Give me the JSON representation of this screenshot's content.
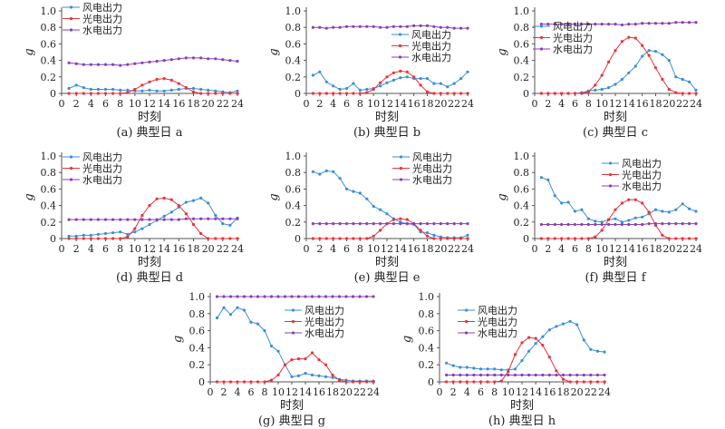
{
  "chart_data": [
    {
      "id": "a",
      "type": "line",
      "caption": "(a) 典型日 a",
      "xlabel": "时刻",
      "ylabel": "g",
      "ylim": [
        0,
        1.0
      ],
      "x": [
        1,
        2,
        3,
        4,
        5,
        6,
        7,
        8,
        9,
        10,
        11,
        12,
        13,
        14,
        15,
        16,
        17,
        18,
        19,
        20,
        21,
        22,
        23,
        24
      ],
      "legend_position": "top-left",
      "series": [
        {
          "name": "风电出力",
          "color": "#3b8ed8",
          "values": [
            0.06,
            0.1,
            0.07,
            0.05,
            0.05,
            0.05,
            0.05,
            0.04,
            0.04,
            0.03,
            0.03,
            0.04,
            0.03,
            0.03,
            0.04,
            0.05,
            0.06,
            0.06,
            0.05,
            0.04,
            0.03,
            0.02,
            0.01,
            0.03
          ]
        },
        {
          "name": "光电出力",
          "color": "#e8333a",
          "values": [
            0,
            0,
            0,
            0,
            0,
            0,
            0,
            0,
            0.01,
            0.05,
            0.1,
            0.14,
            0.17,
            0.18,
            0.16,
            0.12,
            0.07,
            0.02,
            0,
            0,
            0,
            0,
            0,
            0
          ]
        },
        {
          "name": "水电出力",
          "color": "#8a3fb5",
          "values": [
            0.37,
            0.36,
            0.35,
            0.35,
            0.35,
            0.35,
            0.35,
            0.34,
            0.35,
            0.36,
            0.37,
            0.38,
            0.39,
            0.4,
            0.41,
            0.42,
            0.43,
            0.43,
            0.43,
            0.42,
            0.42,
            0.41,
            0.4,
            0.39
          ]
        }
      ]
    },
    {
      "id": "b",
      "type": "line",
      "caption": "(b) 典型日 b",
      "xlabel": "时刻",
      "ylabel": "g",
      "ylim": [
        0,
        1.0
      ],
      "x": [
        1,
        2,
        3,
        4,
        5,
        6,
        7,
        8,
        9,
        10,
        11,
        12,
        13,
        14,
        15,
        16,
        17,
        18,
        19,
        20,
        21,
        22,
        23,
        24
      ],
      "legend_position": "right-middle",
      "series": [
        {
          "name": "风电出力",
          "color": "#3b8ed8",
          "values": [
            0.22,
            0.26,
            0.14,
            0.09,
            0.05,
            0.06,
            0.12,
            0.04,
            0.05,
            0.06,
            0.09,
            0.13,
            0.16,
            0.19,
            0.2,
            0.18,
            0.18,
            0.18,
            0.12,
            0.12,
            0.08,
            0.12,
            0.18,
            0.26
          ]
        },
        {
          "name": "光电出力",
          "color": "#e8333a",
          "values": [
            0,
            0,
            0,
            0,
            0,
            0,
            0,
            0,
            0.01,
            0.05,
            0.13,
            0.2,
            0.25,
            0.27,
            0.26,
            0.2,
            0.1,
            0.02,
            0,
            0,
            0,
            0,
            0,
            0
          ]
        },
        {
          "name": "水电出力",
          "color": "#8a3fb5",
          "values": [
            0.8,
            0.8,
            0.79,
            0.8,
            0.8,
            0.81,
            0.81,
            0.81,
            0.81,
            0.81,
            0.8,
            0.8,
            0.81,
            0.81,
            0.81,
            0.82,
            0.82,
            0.82,
            0.81,
            0.8,
            0.8,
            0.79,
            0.79,
            0.79
          ]
        }
      ]
    },
    {
      "id": "c",
      "type": "line",
      "caption": "(c) 典型日 c",
      "xlabel": "时刻",
      "ylabel": "g",
      "ylim": [
        0,
        1.0
      ],
      "x": [
        1,
        2,
        3,
        4,
        5,
        6,
        7,
        8,
        9,
        10,
        11,
        12,
        13,
        14,
        15,
        16,
        17,
        18,
        19,
        20,
        21,
        22,
        23,
        24
      ],
      "legend_position": "top-left",
      "series": [
        {
          "name": "风电出力",
          "color": "#3b8ed8",
          "values": [
            0,
            0,
            0,
            0,
            0,
            0,
            0.01,
            0.03,
            0.04,
            0.05,
            0.07,
            0.11,
            0.17,
            0.25,
            0.33,
            0.45,
            0.52,
            0.51,
            0.47,
            0.4,
            0.2,
            0.17,
            0.14,
            0.04
          ]
        },
        {
          "name": "光电出力",
          "color": "#e8333a",
          "values": [
            0,
            0,
            0,
            0,
            0,
            0,
            0,
            0.02,
            0.1,
            0.22,
            0.38,
            0.52,
            0.63,
            0.68,
            0.67,
            0.58,
            0.46,
            0.31,
            0.17,
            0.05,
            0.01,
            0,
            0,
            0
          ]
        },
        {
          "name": "水电出力",
          "color": "#8a3fb5",
          "values": [
            0.84,
            0.84,
            0.84,
            0.84,
            0.84,
            0.84,
            0.84,
            0.84,
            0.84,
            0.84,
            0.84,
            0.84,
            0.83,
            0.84,
            0.84,
            0.85,
            0.85,
            0.85,
            0.85,
            0.85,
            0.86,
            0.86,
            0.86,
            0.86
          ]
        }
      ]
    },
    {
      "id": "d",
      "type": "line",
      "caption": "(d) 典型日 d",
      "xlabel": "时刻",
      "ylabel": "g",
      "ylim": [
        0,
        1.0
      ],
      "x": [
        1,
        2,
        3,
        4,
        5,
        6,
        7,
        8,
        9,
        10,
        11,
        12,
        13,
        14,
        15,
        16,
        17,
        18,
        19,
        20,
        21,
        22,
        23,
        24
      ],
      "legend_position": "top-left",
      "series": [
        {
          "name": "风电出力",
          "color": "#3b8ed8",
          "values": [
            0.03,
            0.03,
            0.04,
            0.04,
            0.05,
            0.06,
            0.07,
            0.08,
            0.05,
            0.08,
            0.12,
            0.17,
            0.22,
            0.27,
            0.32,
            0.38,
            0.44,
            0.46,
            0.49,
            0.43,
            0.28,
            0.18,
            0.16,
            0.25
          ]
        },
        {
          "name": "光电出力",
          "color": "#e8333a",
          "values": [
            0,
            0,
            0,
            0,
            0,
            0,
            0,
            0,
            0.02,
            0.12,
            0.28,
            0.4,
            0.48,
            0.49,
            0.47,
            0.4,
            0.3,
            0.17,
            0.06,
            0,
            0,
            0,
            0,
            0
          ]
        },
        {
          "name": "水电出力",
          "color": "#8a3fb5",
          "values": [
            0.23,
            0.23,
            0.23,
            0.23,
            0.23,
            0.23,
            0.23,
            0.23,
            0.23,
            0.23,
            0.23,
            0.23,
            0.23,
            0.23,
            0.23,
            0.23,
            0.24,
            0.24,
            0.24,
            0.24,
            0.24,
            0.24,
            0.24,
            0.24
          ]
        }
      ]
    },
    {
      "id": "e",
      "type": "line",
      "caption": "(e) 典型日 e",
      "xlabel": "时刻",
      "ylabel": "g",
      "ylim": [
        0,
        1.0
      ],
      "x": [
        1,
        2,
        3,
        4,
        5,
        6,
        7,
        8,
        9,
        10,
        11,
        12,
        13,
        14,
        15,
        16,
        17,
        18,
        19,
        20,
        21,
        22,
        23,
        24
      ],
      "legend_position": "top-right",
      "series": [
        {
          "name": "风电出力",
          "color": "#3b8ed8",
          "values": [
            0.81,
            0.78,
            0.82,
            0.81,
            0.73,
            0.6,
            0.57,
            0.55,
            0.48,
            0.39,
            0.35,
            0.3,
            0.24,
            0.2,
            0.18,
            0.17,
            0.08,
            0.07,
            0.04,
            0.02,
            0.01,
            0.01,
            0.01,
            0.04
          ]
        },
        {
          "name": "光电出力",
          "color": "#e8333a",
          "values": [
            0,
            0,
            0,
            0,
            0,
            0,
            0,
            0,
            0,
            0.03,
            0.1,
            0.18,
            0.23,
            0.24,
            0.23,
            0.18,
            0.1,
            0.03,
            0,
            0,
            0,
            0,
            0,
            0
          ]
        },
        {
          "name": "水电出力",
          "color": "#8a3fb5",
          "values": [
            0.18,
            0.18,
            0.18,
            0.18,
            0.18,
            0.18,
            0.18,
            0.18,
            0.18,
            0.18,
            0.18,
            0.18,
            0.18,
            0.18,
            0.18,
            0.18,
            0.18,
            0.18,
            0.18,
            0.18,
            0.18,
            0.18,
            0.18,
            0.18
          ]
        }
      ]
    },
    {
      "id": "f",
      "type": "line",
      "caption": "(f) 典型日 f",
      "xlabel": "时刻",
      "ylabel": "g",
      "ylim": [
        0,
        1.0
      ],
      "x": [
        1,
        2,
        3,
        4,
        5,
        6,
        7,
        8,
        9,
        10,
        11,
        12,
        13,
        14,
        15,
        16,
        17,
        18,
        19,
        20,
        21,
        22,
        23,
        24
      ],
      "legend_position": "top-right",
      "series": [
        {
          "name": "风电出力",
          "color": "#3b8ed8",
          "values": [
            0.74,
            0.71,
            0.52,
            0.43,
            0.44,
            0.33,
            0.35,
            0.24,
            0.21,
            0.2,
            0.23,
            0.24,
            0.2,
            0.22,
            0.25,
            0.26,
            0.3,
            0.35,
            0.33,
            0.32,
            0.35,
            0.42,
            0.36,
            0.33
          ]
        },
        {
          "name": "光电出力",
          "color": "#e8333a",
          "values": [
            0,
            0,
            0,
            0,
            0,
            0,
            0,
            0,
            0.02,
            0.1,
            0.23,
            0.35,
            0.43,
            0.47,
            0.47,
            0.43,
            0.32,
            0.16,
            0.04,
            0,
            0,
            0,
            0,
            0
          ]
        },
        {
          "name": "水电出力",
          "color": "#8a3fb5",
          "values": [
            0.17,
            0.17,
            0.17,
            0.17,
            0.17,
            0.17,
            0.17,
            0.17,
            0.17,
            0.17,
            0.17,
            0.17,
            0.17,
            0.17,
            0.17,
            0.17,
            0.18,
            0.18,
            0.18,
            0.18,
            0.18,
            0.18,
            0.18,
            0.18
          ]
        }
      ]
    },
    {
      "id": "g",
      "type": "line",
      "caption": "(g) 典型日 g",
      "xlabel": "时刻",
      "ylabel": "g",
      "ylim": [
        0,
        1.0
      ],
      "x": [
        1,
        2,
        3,
        4,
        5,
        6,
        7,
        8,
        9,
        10,
        11,
        12,
        13,
        14,
        15,
        16,
        17,
        18,
        19,
        20,
        21,
        22,
        23,
        24
      ],
      "legend_position": "right-middle",
      "series": [
        {
          "name": "风电出力",
          "color": "#3b8ed8",
          "values": [
            0.75,
            0.87,
            0.79,
            0.87,
            0.84,
            0.7,
            0.68,
            0.6,
            0.42,
            0.36,
            0.2,
            0.06,
            0.07,
            0.1,
            0.08,
            0.07,
            0.06,
            0.05,
            0.03,
            0.02,
            0.01,
            0.01,
            0.01,
            0.01
          ]
        },
        {
          "name": "光电出力",
          "color": "#e8333a",
          "values": [
            0,
            0,
            0,
            0,
            0,
            0,
            0,
            0,
            0.02,
            0.08,
            0.2,
            0.26,
            0.27,
            0.27,
            0.34,
            0.26,
            0.2,
            0.08,
            0.02,
            0,
            0,
            0,
            0,
            0
          ]
        },
        {
          "name": "水电出力",
          "color": "#8a3fb5",
          "values": [
            1.0,
            1.0,
            1.0,
            1.0,
            1.0,
            1.0,
            1.0,
            1.0,
            1.0,
            1.0,
            1.0,
            1.0,
            1.0,
            1.0,
            1.0,
            1.0,
            1.0,
            1.0,
            1.0,
            1.0,
            1.0,
            1.0,
            1.0,
            1.0
          ]
        }
      ]
    },
    {
      "id": "h",
      "type": "line",
      "caption": "(h) 典型日 h",
      "xlabel": "时刻",
      "ylabel": "g",
      "ylim": [
        0,
        1.0
      ],
      "x": [
        1,
        2,
        3,
        4,
        5,
        6,
        7,
        8,
        9,
        10,
        11,
        12,
        13,
        14,
        15,
        16,
        17,
        18,
        19,
        20,
        21,
        22,
        23,
        24
      ],
      "legend_position": "top-middle",
      "series": [
        {
          "name": "风电出力",
          "color": "#3b8ed8",
          "values": [
            0.22,
            0.19,
            0.17,
            0.17,
            0.16,
            0.15,
            0.15,
            0.15,
            0.14,
            0.14,
            0.15,
            0.25,
            0.36,
            0.45,
            0.53,
            0.61,
            0.65,
            0.68,
            0.71,
            0.67,
            0.49,
            0.38,
            0.36,
            0.35
          ]
        },
        {
          "name": "光电出力",
          "color": "#e8333a",
          "values": [
            0,
            0,
            0,
            0,
            0,
            0,
            0,
            0,
            0.01,
            0.12,
            0.32,
            0.46,
            0.52,
            0.51,
            0.43,
            0.29,
            0.13,
            0.03,
            0,
            0,
            0,
            0,
            0,
            0
          ]
        },
        {
          "name": "水电出力",
          "color": "#8a3fb5",
          "values": [
            0.08,
            0.08,
            0.08,
            0.08,
            0.08,
            0.08,
            0.08,
            0.08,
            0.08,
            0.08,
            0.08,
            0.08,
            0.08,
            0.08,
            0.08,
            0.08,
            0.08,
            0.08,
            0.08,
            0.08,
            0.08,
            0.08,
            0.08,
            0.08
          ]
        }
      ]
    }
  ],
  "axis": {
    "y_ticks": [
      "0",
      "0.2",
      "0.4",
      "0.6",
      "0.8",
      "1.0"
    ],
    "x_ticks": [
      "0",
      "2",
      "4",
      "6",
      "8",
      "10",
      "12",
      "14",
      "16",
      "18",
      "20",
      "22",
      "24"
    ]
  }
}
